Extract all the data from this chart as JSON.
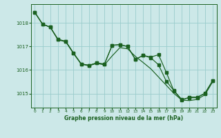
{
  "background_color": "#cce8e8",
  "grid_color": "#99cccc",
  "line_color": "#1a6020",
  "xlabel": "Graphe pression niveau de la mer (hPa)",
  "ylim": [
    1014.4,
    1018.8
  ],
  "xlim": [
    -0.5,
    23.5
  ],
  "yticks": [
    1015,
    1016,
    1017,
    1018
  ],
  "xticks": [
    0,
    1,
    2,
    3,
    4,
    5,
    6,
    7,
    8,
    9,
    10,
    11,
    12,
    13,
    14,
    15,
    16,
    17,
    18,
    19,
    20,
    21,
    22,
    23
  ],
  "line_straight": [
    1018.45,
    1017.95,
    1017.82,
    1017.28,
    1017.2,
    1016.7,
    1016.25,
    1016.18,
    1016.28,
    1016.22,
    1016.6,
    1016.95,
    1016.9,
    1016.58,
    1016.32,
    1016.05,
    1015.7,
    1015.35,
    1015.0,
    1014.72,
    1014.7,
    1014.75,
    1014.95,
    1015.5
  ],
  "line_b": [
    1018.45,
    1017.95,
    1017.82,
    1017.3,
    1017.22,
    1016.72,
    1016.26,
    1016.2,
    1016.3,
    1016.25,
    1017.05,
    1017.08,
    1017.0,
    1016.45,
    1016.62,
    1016.52,
    1016.22,
    1015.52,
    1015.12,
    1014.75,
    1014.82,
    1014.82,
    1015.02,
    1015.55
  ],
  "line_c": [
    1018.45,
    1017.95,
    1017.82,
    1017.3,
    1017.22,
    1016.72,
    1016.26,
    1016.2,
    1016.3,
    1016.25,
    1017.05,
    1017.08,
    1017.0,
    1016.45,
    1016.62,
    1016.55,
    1016.65,
    1015.9,
    1015.1,
    1014.72,
    1014.85,
    1014.85,
    1015.0,
    1015.55
  ]
}
